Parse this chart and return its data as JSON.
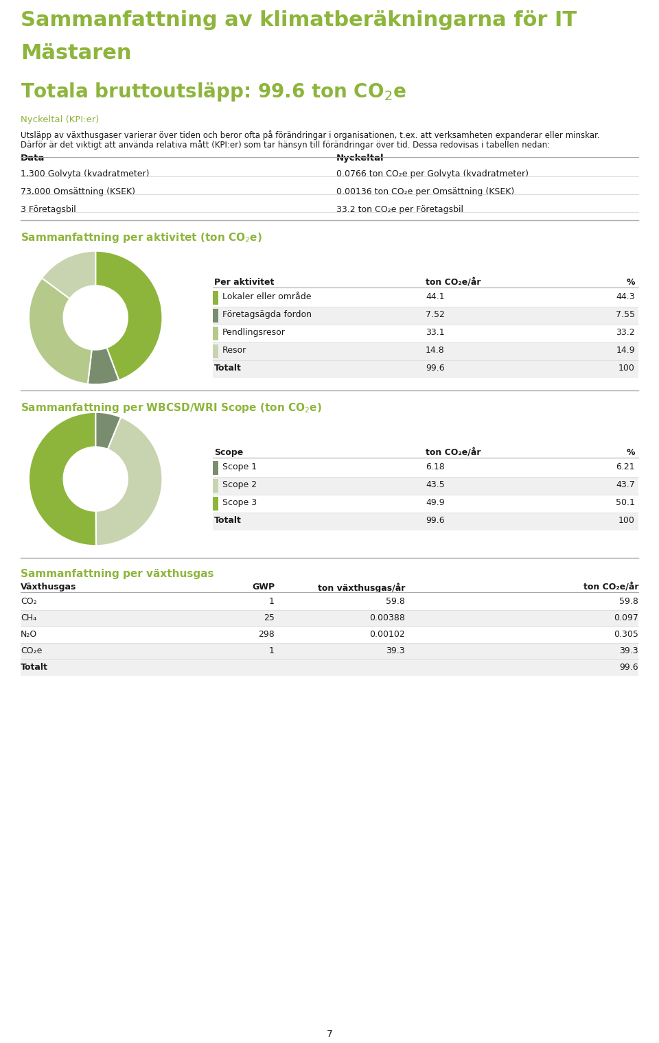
{
  "title_line1": "Sammanfattning av klimatberäkningarna för IT",
  "title_line2": "Mästaren",
  "green_color": "#8db53b",
  "body_text_color": "#1a1a1a",
  "kpi_header": "Nyckeltal (KPI:er)",
  "para1": "Utsläpp av växthusgaser varierar över tiden och beror ofta på förändringar i organisationen, t.ex. att verksamheten expanderar eller minskar.",
  "para2": "Därför är det viktigt att använda relativa mått (KPI:er) som tar hänsyn till förändringar över tid. Dessa redovisas i tabellen nedan:",
  "kpi_data_header": "Data",
  "kpi_nyckeltal_header": "Nyckeltal",
  "kpi_rows": [
    [
      "1,300 Golvyta (kvadratmeter)",
      "0.0766 ton CO₂e per Golvyta (kvadratmeter)"
    ],
    [
      "73,000 Omsättning (KSEK)",
      "0.00136 ton CO₂e per Omsättning (KSEK)"
    ],
    [
      "3 Företagsbil",
      "33.2 ton CO₂e per Företagsbil"
    ]
  ],
  "aktivitet_table_headers": [
    "Per aktivitet",
    "ton CO₂e/år",
    "%"
  ],
  "aktivitet_rows": [
    [
      "Lokaler eller område",
      "44.1",
      "44.3"
    ],
    [
      "Företagsägda fordon",
      "7.52",
      "7.55"
    ],
    [
      "Pendlingsresor",
      "33.1",
      "33.2"
    ],
    [
      "Resor",
      "14.8",
      "14.9"
    ]
  ],
  "aktivitet_totalt": [
    "Totalt",
    "99.6",
    "100"
  ],
  "aktivitet_values": [
    44.1,
    7.52,
    33.1,
    14.8
  ],
  "aktivitet_colors": [
    "#8db53b",
    "#7a8c6e",
    "#b5c98a",
    "#c8d4b0"
  ],
  "scope_table_headers": [
    "Scope",
    "ton CO₂e/år",
    "%"
  ],
  "scope_rows": [
    [
      "Scope 1",
      "6.18",
      "6.21"
    ],
    [
      "Scope 2",
      "43.5",
      "43.7"
    ],
    [
      "Scope 3",
      "49.9",
      "50.1"
    ]
  ],
  "scope_totalt": [
    "Totalt",
    "99.6",
    "100"
  ],
  "scope_values": [
    6.18,
    43.5,
    49.9
  ],
  "scope_colors": [
    "#7a8c6e",
    "#c8d4b0",
    "#8db53b"
  ],
  "section3_title": "Sammanfattning per växthusgas",
  "gas_table_headers": [
    "Växthusgas",
    "GWP",
    "ton växthusgas/år",
    "ton CO₂e/år"
  ],
  "gas_rows": [
    [
      "CO₂",
      "1",
      "59.8",
      "59.8"
    ],
    [
      "CH₄",
      "25",
      "0.00388",
      "0.097"
    ],
    [
      "N₂O",
      "298",
      "0.00102",
      "0.305"
    ],
    [
      "CO₂e",
      "1",
      "39.3",
      "39.3"
    ]
  ],
  "gas_totalt": [
    "Totalt",
    "",
    "",
    "99.6"
  ],
  "page_number": "7",
  "bg_color": "#ffffff",
  "table_stripe_color": "#f0f0f0",
  "table_header_bg": "#e8e8e8",
  "sep_color_dark": "#aaaaaa",
  "sep_color_light": "#d8d8d8"
}
